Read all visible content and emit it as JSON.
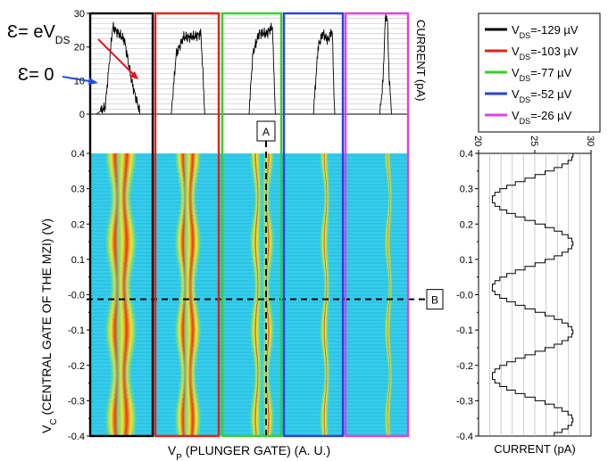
{
  "colors": {
    "heat_bg": "#2ec8e8",
    "heat_mid": "#7fe07a",
    "heat_yellow": "#f3e82a",
    "heat_red": "#e33a1c",
    "eps_red": "#e8101a",
    "eps_blue": "#1f4fe0"
  },
  "annotations": {
    "eps_ds_main": "Ɛ= eV",
    "eps_ds_sub": "DS",
    "eps_zero": "Ɛ= 0",
    "marker_a": "A",
    "marker_b": "B"
  },
  "chart_data": [
    {
      "type": "line",
      "name": "current-traces",
      "ylabel": "CURRENT (pA)",
      "ylim": [
        0,
        30
      ],
      "yticks": [
        0,
        10,
        20,
        30
      ],
      "panels": [
        {
          "legend_label": "V_DS=-129 µV",
          "color": "#000000",
          "plateau": 24,
          "x": [
            0.0,
            0.1,
            0.24,
            0.36,
            0.55,
            0.66,
            0.8,
            1.0
          ],
          "y": [
            0,
            0,
            2,
            26,
            22,
            10,
            0,
            0
          ]
        },
        {
          "legend_label": "V_DS=-103 µV",
          "color": "#e32119",
          "plateau": 23,
          "x": [
            0.0,
            0.25,
            0.33,
            0.45,
            0.6,
            0.72,
            0.78,
            1.0
          ],
          "y": [
            0,
            0,
            18,
            23,
            23,
            24,
            0,
            0
          ]
        },
        {
          "legend_label": "V_DS=-77 µV",
          "color": "#34d12a",
          "plateau": 25,
          "x": [
            0.0,
            0.45,
            0.52,
            0.62,
            0.75,
            0.85,
            0.9,
            1.0
          ],
          "y": [
            0,
            0,
            18,
            24,
            24,
            26,
            0,
            0
          ]
        },
        {
          "legend_label": "V_DS=-52 µV",
          "color": "#2b3fe0",
          "plateau": 24,
          "x": [
            0.0,
            0.5,
            0.58,
            0.66,
            0.75,
            0.82,
            0.86,
            1.0
          ],
          "y": [
            0,
            0,
            20,
            24,
            22,
            25,
            0,
            0
          ]
        },
        {
          "legend_label": "V_DS=-26 µV",
          "color": "#e140e0",
          "plateau": 28,
          "x": [
            0.0,
            0.55,
            0.6,
            0.64,
            0.67,
            0.7,
            0.74,
            1.0
          ],
          "y": [
            0,
            0,
            10,
            30,
            28,
            10,
            0,
            0
          ]
        }
      ]
    },
    {
      "type": "heatmap",
      "name": "vc-vp-map",
      "xlabel_main": "V",
      "xlabel_sub": "P",
      "xlabel_rest": " (PLUNGER GATE) (A. U.)",
      "ylabel_main": "V",
      "ylabel_sub": "C",
      "ylabel_rest": " (CENTRAL GATE OF THE MZI) (V)",
      "ylim": [
        -0.4,
        0.4
      ],
      "yticks": [
        -0.4,
        -0.3,
        -0.2,
        -0.1,
        -0.0,
        0.1,
        0.2,
        0.3,
        0.4
      ],
      "ytick_labels": [
        "-0.4",
        "-0.3",
        "-0.2",
        "-0.1",
        "-0.0",
        "0.1",
        "0.2",
        "0.3",
        "0.4"
      ]
    },
    {
      "type": "line",
      "name": "oscillation-cut",
      "xlabel": "CURRENT (pA)",
      "xlim": [
        20,
        30
      ],
      "xticks": [
        20,
        25,
        30
      ],
      "ylim": [
        -0.4,
        0.4
      ],
      "yticks": [
        -0.4,
        -0.3,
        -0.2,
        -0.1,
        -0.0,
        0.1,
        0.2,
        0.3,
        0.4
      ],
      "ytick_labels": [
        "-0.4",
        "-0.3",
        "-0.2",
        "-0.1",
        "-0.0",
        "0.1",
        "0.2",
        "0.3",
        "0.4"
      ],
      "period_v": 0.25,
      "amplitude_pa": 3.6,
      "center_pa": 24.8,
      "phase_v": 0.15
    }
  ],
  "legend": {
    "entries": [
      {
        "pre": "V",
        "sub": "DS",
        "post": "=-129 µV",
        "color": "#000000"
      },
      {
        "pre": "V",
        "sub": "DS",
        "post": "=-103 µV",
        "color": "#e32119"
      },
      {
        "pre": "V",
        "sub": "DS",
        "post": "=-77 µV",
        "color": "#34d12a"
      },
      {
        "pre": "V",
        "sub": "DS",
        "post": "=-52 µV",
        "color": "#2b3fe0"
      },
      {
        "pre": "V",
        "sub": "DS",
        "post": "=-26 µV",
        "color": "#e140e0"
      }
    ]
  }
}
